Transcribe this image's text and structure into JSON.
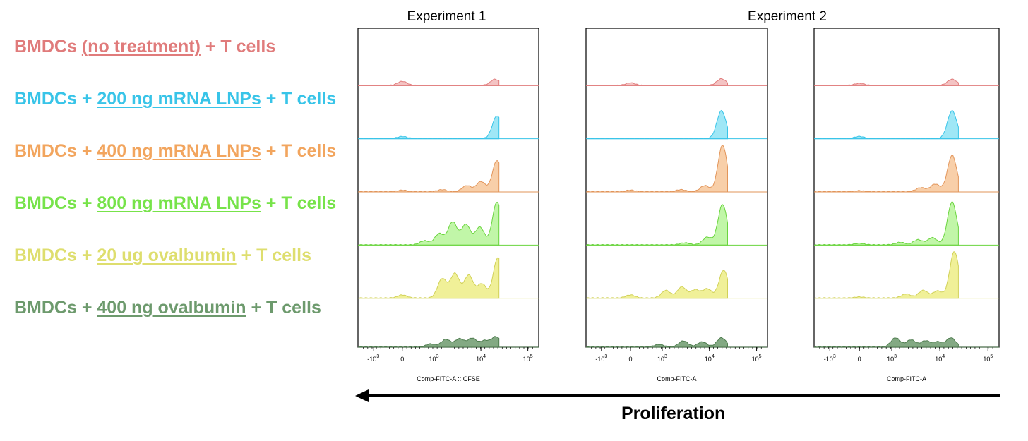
{
  "experiments": [
    {
      "title": "Experiment 1"
    },
    {
      "title": "Experiment 2"
    }
  ],
  "legend": [
    {
      "prefix": "BMDCs ",
      "underlined": "(no treatment)",
      "suffix": " + T cells",
      "color": "#e07b7b"
    },
    {
      "prefix": "BMDCs + ",
      "underlined": "200 ng mRNA LNPs",
      "suffix": " + T cells",
      "color": "#38c4e8"
    },
    {
      "prefix": "BMDCs + ",
      "underlined": "400 ng mRNA LNPs",
      "suffix": " + T cells",
      "color": "#f2a55e"
    },
    {
      "prefix": "BMDCs + ",
      "underlined": "800 ng mRNA LNPs",
      "suffix": " + T cells",
      "color": "#77e34a"
    },
    {
      "prefix": "BMDCs + ",
      "underlined": "20 ug ovalbumin",
      "suffix": " + T cells",
      "color": "#dede6e"
    },
    {
      "prefix": "BMDCs + ",
      "underlined": "400 ng ovalbumin",
      "suffix": " + T cells",
      "color": "#6d9a6d"
    }
  ],
  "arrow": {
    "label": "Proliferation",
    "direction": "left"
  },
  "chart_data": [
    {
      "type": "area",
      "panel": "Experiment 1",
      "xlabel": "Comp-FITC-A :: CFSE",
      "x_scale": "biexponential",
      "x_ticks": [
        "-10^3",
        "0",
        "10^3",
        "10^4",
        "10^5"
      ],
      "series": [
        {
          "name": "BMDCs (no treatment) + T cells",
          "color": "#e07b7b",
          "fill": "#f2b8b8",
          "peaks": [
            [
              0,
              0.08
            ],
            [
              20000,
              0.12
            ]
          ]
        },
        {
          "name": "BMDCs + 200 ng mRNA LNPs + T cells",
          "color": "#38c4e8",
          "fill": "#8ee3f5",
          "peaks": [
            [
              0,
              0.04
            ],
            [
              22000,
              0.45
            ]
          ]
        },
        {
          "name": "BMDCs + 400 ng mRNA LNPs + T cells",
          "color": "#e2955a",
          "fill": "#f7c79a",
          "peaks": [
            [
              0,
              0.03
            ],
            [
              1500,
              0.04
            ],
            [
              5000,
              0.12
            ],
            [
              10000,
              0.2
            ],
            [
              22000,
              0.62
            ]
          ]
        },
        {
          "name": "BMDCs + 800 ng mRNA LNPs + T cells",
          "color": "#6ad43e",
          "fill": "#b6f599",
          "peaks": [
            [
              700,
              0.08
            ],
            [
              1300,
              0.22
            ],
            [
              2500,
              0.45
            ],
            [
              4800,
              0.4
            ],
            [
              9500,
              0.35
            ],
            [
              22000,
              0.85
            ]
          ]
        },
        {
          "name": "BMDCs + 20 ug ovalbumin + T cells",
          "color": "#d1d157",
          "fill": "#eded86",
          "peaks": [
            [
              0,
              0.06
            ],
            [
              1500,
              0.38
            ],
            [
              2800,
              0.48
            ],
            [
              5500,
              0.45
            ],
            [
              10500,
              0.28
            ],
            [
              23000,
              0.8
            ]
          ]
        },
        {
          "name": "BMDCs + 400 ng ovalbumin + T cells",
          "color": "#4f7d4f",
          "fill": "#6d9a6d",
          "peaks": [
            [
              900,
              0.06
            ],
            [
              1800,
              0.15
            ],
            [
              3500,
              0.16
            ],
            [
              6500,
              0.17
            ],
            [
              12000,
              0.12
            ],
            [
              21000,
              0.2
            ]
          ]
        }
      ]
    },
    {
      "type": "area",
      "panel": "Experiment 2",
      "xlabel": "Comp-FITC-A",
      "x_scale": "biexponential",
      "x_ticks": [
        "-10^3",
        "0",
        "10^3",
        "10^4",
        "10^5"
      ],
      "series": [
        {
          "name": "BMDCs (no treatment) + T cells",
          "color": "#e07b7b",
          "fill": "#f2b8b8",
          "peaks": [
            [
              0,
              0.05
            ],
            [
              18000,
              0.13
            ]
          ]
        },
        {
          "name": "BMDCs + 200 ng mRNA LNPs + T cells",
          "color": "#38c4e8",
          "fill": "#8ee3f5",
          "peaks": [
            [
              18000,
              0.55
            ]
          ]
        },
        {
          "name": "BMDCs + 400 ng mRNA LNPs + T cells",
          "color": "#e2955a",
          "fill": "#f7c79a",
          "peaks": [
            [
              0,
              0.03
            ],
            [
              2500,
              0.04
            ],
            [
              8000,
              0.12
            ],
            [
              19000,
              0.92
            ]
          ]
        },
        {
          "name": "BMDCs + 800 ng mRNA LNPs + T cells",
          "color": "#6ad43e",
          "fill": "#b6f599",
          "peaks": [
            [
              3000,
              0.04
            ],
            [
              9000,
              0.15
            ],
            [
              19000,
              0.8
            ]
          ]
        },
        {
          "name": "BMDCs + 20 ug ovalbumin + T cells",
          "color": "#d1d157",
          "fill": "#eded86",
          "peaks": [
            [
              0,
              0.06
            ],
            [
              1200,
              0.15
            ],
            [
              2600,
              0.22
            ],
            [
              5000,
              0.16
            ],
            [
              9000,
              0.18
            ],
            [
              20000,
              0.55
            ]
          ]
        },
        {
          "name": "BMDCs + 400 ng ovalbumin + T cells",
          "color": "#4f7d4f",
          "fill": "#6d9a6d",
          "peaks": [
            [
              900,
              0.05
            ],
            [
              2800,
              0.12
            ],
            [
              7000,
              0.1
            ],
            [
              18000,
              0.18
            ]
          ]
        }
      ]
    },
    {
      "type": "area",
      "panel": "Experiment 2",
      "xlabel": "Comp-FITC-A",
      "x_scale": "biexponential",
      "x_ticks": [
        "-10^3",
        "0",
        "10^3",
        "10^4",
        "10^5"
      ],
      "series": [
        {
          "name": "BMDCs (no treatment) + T cells",
          "color": "#e07b7b",
          "fill": "#f2b8b8",
          "peaks": [
            [
              0,
              0.04
            ],
            [
              18000,
              0.12
            ]
          ]
        },
        {
          "name": "BMDCs + 200 ng mRNA LNPs + T cells",
          "color": "#38c4e8",
          "fill": "#8ee3f5",
          "peaks": [
            [
              0,
              0.04
            ],
            [
              18000,
              0.55
            ]
          ]
        },
        {
          "name": "BMDCs + 400 ng mRNA LNPs + T cells",
          "color": "#e2955a",
          "fill": "#f7c79a",
          "peaks": [
            [
              0,
              0.02
            ],
            [
              4000,
              0.08
            ],
            [
              8000,
              0.15
            ],
            [
              18000,
              0.72
            ]
          ]
        },
        {
          "name": "BMDCs + 800 ng mRNA LNPs + T cells",
          "color": "#6ad43e",
          "fill": "#b6f599",
          "peaks": [
            [
              0,
              0.03
            ],
            [
              1500,
              0.05
            ],
            [
              3500,
              0.1
            ],
            [
              7000,
              0.14
            ],
            [
              18000,
              0.85
            ]
          ]
        },
        {
          "name": "BMDCs + 20 ug ovalbumin + T cells",
          "color": "#d1d157",
          "fill": "#eded86",
          "peaks": [
            [
              0,
              0.02
            ],
            [
              2000,
              0.08
            ],
            [
              4500,
              0.15
            ],
            [
              9000,
              0.14
            ],
            [
              20000,
              0.92
            ]
          ]
        },
        {
          "name": "BMDCs + 400 ng ovalbumin + T cells",
          "color": "#4f7d4f",
          "fill": "#6d9a6d",
          "peaks": [
            [
              1200,
              0.18
            ],
            [
              2500,
              0.14
            ],
            [
              5000,
              0.12
            ],
            [
              9000,
              0.1
            ],
            [
              17000,
              0.18
            ]
          ]
        }
      ]
    }
  ]
}
